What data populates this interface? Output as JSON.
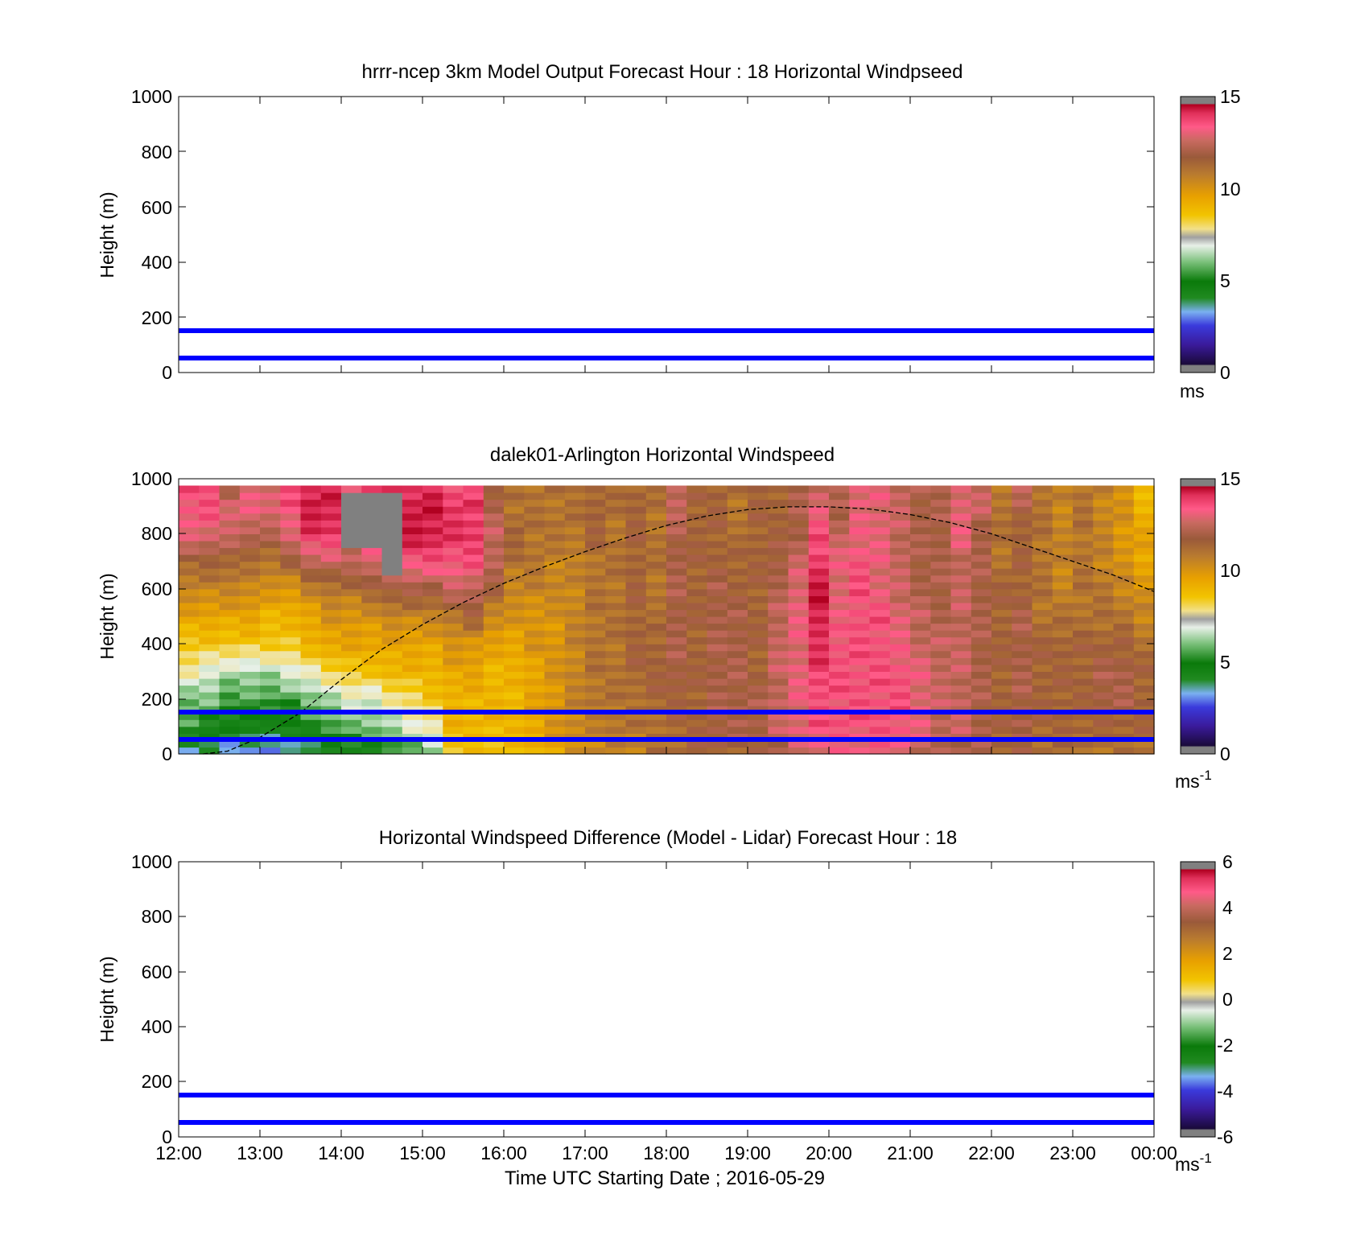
{
  "chart_data": [
    {
      "type": "heatmap",
      "title": "hrrr-ncep 3km Model Output   Forecast Hour : 18 Horizontal Windpseed",
      "ylabel": "Height (m)",
      "ylim": [
        0,
        1000
      ],
      "yticks": [
        "0",
        "200",
        "400",
        "600",
        "800",
        "1000"
      ],
      "xlim_hours": [
        12,
        24
      ],
      "colorbar": {
        "ticks": [
          "0",
          "5",
          "10",
          "15"
        ],
        "range": [
          0,
          15
        ],
        "unit": "ms",
        "unit_sup": ""
      },
      "reference_lines": [
        50,
        150
      ],
      "reference_line_color": "#0000ff",
      "values": []
    },
    {
      "type": "heatmap",
      "title": "dalek01-Arlington  Horizontal Windspeed",
      "ylabel": "Height (m)",
      "ylim": [
        0,
        1000
      ],
      "yticks": [
        "0",
        "200",
        "400",
        "600",
        "800",
        "1000"
      ],
      "xlim_hours": [
        12,
        24
      ],
      "colorbar": {
        "ticks": [
          "0",
          "5",
          "10",
          "15"
        ],
        "range": [
          0,
          15
        ],
        "unit": "ms",
        "unit_sup": "-1"
      },
      "reference_lines": [
        50,
        150
      ],
      "reference_line_color": "#0000ff",
      "bl_curve": {
        "x_hours": [
          12.3,
          12.6,
          13.0,
          13.5,
          14.0,
          14.5,
          15.0,
          15.5,
          16.0,
          16.5,
          17.0,
          17.5,
          18.0,
          18.5,
          19.0,
          19.5,
          20.0,
          20.5,
          21.0,
          21.5,
          22.0,
          22.5,
          23.0,
          23.5,
          24.0
        ],
        "y_m": [
          0,
          10,
          60,
          150,
          270,
          380,
          470,
          550,
          620,
          680,
          735,
          785,
          830,
          865,
          888,
          898,
          898,
          890,
          870,
          840,
          800,
          750,
          700,
          650,
          590
        ]
      },
      "columns": [
        {
          "hour": 12.125,
          "profile": [
            3.5,
            5.5,
            6.0,
            7.5,
            8.5,
            9.5,
            10.5,
            11.5,
            13.0,
            13.5,
            13.5
          ]
        },
        {
          "hour": 12.375,
          "profile": [
            3.5,
            5.0,
            6.0,
            7.0,
            8.5,
            9.5,
            10.5,
            11.5,
            13.0,
            13.5,
            13.5
          ]
        },
        {
          "hour": 12.625,
          "profile": [
            3.0,
            4.5,
            5.5,
            6.5,
            8.5,
            9.5,
            10.5,
            11.5,
            12.5,
            13.0,
            11.5
          ]
        },
        {
          "hour": 12.875,
          "profile": [
            3.0,
            4.5,
            5.5,
            6.5,
            8.5,
            9.5,
            10.5,
            11.0,
            12.5,
            13.0,
            13.0
          ]
        },
        {
          "hour": 13.125,
          "profile": [
            3.0,
            4.5,
            5.5,
            6.5,
            8.5,
            9.0,
            10.0,
            11.0,
            12.0,
            13.0,
            13.0
          ]
        },
        {
          "hour": 13.375,
          "profile": [
            3.0,
            4.5,
            5.5,
            7.0,
            8.5,
            9.0,
            10.0,
            11.5,
            13.0,
            13.5,
            13.5
          ]
        },
        {
          "hour": 13.625,
          "profile": [
            3.5,
            5.0,
            6.0,
            7.5,
            9.0,
            9.5,
            10.5,
            12.5,
            14.0,
            14.5,
            14.0
          ]
        },
        {
          "hour": 13.875,
          "profile": [
            4.0,
            5.5,
            6.5,
            8.0,
            9.5,
            10.0,
            11.0,
            12.5,
            14.0,
            14.5,
            14.0
          ]
        },
        {
          "hour": 14.125,
          "profile": [
            4.5,
            6.0,
            7.0,
            8.5,
            9.5,
            10.0,
            11.0,
            12.5,
            -1,
            -1,
            13.5
          ]
        },
        {
          "hour": 14.375,
          "profile": [
            4.5,
            6.0,
            7.0,
            8.5,
            9.5,
            10.0,
            11.5,
            13.0,
            -1,
            -1,
            13.5
          ]
        },
        {
          "hour": 14.625,
          "profile": [
            5.0,
            6.5,
            7.5,
            9.0,
            9.5,
            10.5,
            12.0,
            -1,
            -1,
            -1,
            14.0
          ]
        },
        {
          "hour": 14.875,
          "profile": [
            5.5,
            7.0,
            8.0,
            9.0,
            9.5,
            10.5,
            12.0,
            13.5,
            14.5,
            14.5,
            14.0
          ]
        },
        {
          "hour": 15.125,
          "profile": [
            6.0,
            7.5,
            8.5,
            9.0,
            9.5,
            10.5,
            12.0,
            13.5,
            14.5,
            14.5,
            14.0
          ]
        },
        {
          "hour": 15.375,
          "profile": [
            8.5,
            9.0,
            9.0,
            9.5,
            10.0,
            11.0,
            12.5,
            13.5,
            14.0,
            14.0,
            13.5
          ]
        },
        {
          "hour": 15.625,
          "profile": [
            8.5,
            9.0,
            9.0,
            9.5,
            10.0,
            11.5,
            12.5,
            13.5,
            14.0,
            14.0,
            13.0
          ]
        },
        {
          "hour": 15.875,
          "profile": [
            8.5,
            9.0,
            9.0,
            9.0,
            9.5,
            10.5,
            11.5,
            12.5,
            12.5,
            12.0,
            11.5
          ]
        },
        {
          "hour": 16.125,
          "profile": [
            8.5,
            9.0,
            9.0,
            9.0,
            9.5,
            10.0,
            10.5,
            11.0,
            11.5,
            11.0,
            11.0
          ]
        },
        {
          "hour": 16.375,
          "profile": [
            9.0,
            9.5,
            9.5,
            9.5,
            10.0,
            10.0,
            10.5,
            11.0,
            11.0,
            11.0,
            11.0
          ]
        },
        {
          "hour": 16.625,
          "profile": [
            9.5,
            10.0,
            10.0,
            10.0,
            10.0,
            10.0,
            10.5,
            10.5,
            11.0,
            11.0,
            11.0
          ]
        },
        {
          "hour": 16.875,
          "profile": [
            10.0,
            10.5,
            10.5,
            10.5,
            10.5,
            10.5,
            10.5,
            10.5,
            11.0,
            11.0,
            11.0
          ]
        },
        {
          "hour": 17.125,
          "profile": [
            10.5,
            10.5,
            11.0,
            11.0,
            11.0,
            11.0,
            11.0,
            11.0,
            11.5,
            11.5,
            11.5
          ]
        },
        {
          "hour": 17.375,
          "profile": [
            10.5,
            11.0,
            11.0,
            11.0,
            11.0,
            11.0,
            11.0,
            11.0,
            11.0,
            11.0,
            11.5
          ]
        },
        {
          "hour": 17.625,
          "profile": [
            10.5,
            11.0,
            11.0,
            11.5,
            11.5,
            11.5,
            11.5,
            11.5,
            11.5,
            11.5,
            11.5
          ]
        },
        {
          "hour": 17.875,
          "profile": [
            11.0,
            11.0,
            11.5,
            11.5,
            11.5,
            11.0,
            11.0,
            11.0,
            11.0,
            11.0,
            11.0
          ]
        },
        {
          "hour": 18.125,
          "profile": [
            11.0,
            11.5,
            11.5,
            12.0,
            12.0,
            12.0,
            12.0,
            12.0,
            12.0,
            12.5,
            12.5
          ]
        },
        {
          "hour": 18.375,
          "profile": [
            11.5,
            11.5,
            11.5,
            11.5,
            11.5,
            11.5,
            11.5,
            11.5,
            11.5,
            11.5,
            11.5
          ]
        },
        {
          "hour": 18.625,
          "profile": [
            11.5,
            12.0,
            12.0,
            12.0,
            12.0,
            12.0,
            12.0,
            11.5,
            11.5,
            11.5,
            11.5
          ]
        },
        {
          "hour": 18.875,
          "profile": [
            11.5,
            12.0,
            12.0,
            12.0,
            12.0,
            12.0,
            11.5,
            11.5,
            11.0,
            11.0,
            11.0
          ]
        },
        {
          "hour": 19.125,
          "profile": [
            11.5,
            12.0,
            12.0,
            11.5,
            11.5,
            11.5,
            11.5,
            11.5,
            11.5,
            11.5,
            11.5
          ]
        },
        {
          "hour": 19.375,
          "profile": [
            12.0,
            12.5,
            12.5,
            12.5,
            12.5,
            12.5,
            12.0,
            12.0,
            11.5,
            11.5,
            11.5
          ]
        },
        {
          "hour": 19.625,
          "profile": [
            12.5,
            13.0,
            13.0,
            13.0,
            13.0,
            13.0,
            13.0,
            12.5,
            12.0,
            12.0,
            12.0
          ]
        },
        {
          "hour": 19.875,
          "profile": [
            13.0,
            13.5,
            13.5,
            14.0,
            14.0,
            14.5,
            14.5,
            14.0,
            13.5,
            13.0,
            12.5
          ]
        },
        {
          "hour": 20.125,
          "profile": [
            13.0,
            13.5,
            13.5,
            13.5,
            13.5,
            13.0,
            13.0,
            13.0,
            12.5,
            12.0,
            12.0
          ]
        },
        {
          "hour": 20.375,
          "profile": [
            13.0,
            13.5,
            13.5,
            13.5,
            13.5,
            13.5,
            13.5,
            13.5,
            13.0,
            13.0,
            13.0
          ]
        },
        {
          "hour": 20.625,
          "profile": [
            13.0,
            13.5,
            13.5,
            13.5,
            13.5,
            13.5,
            13.0,
            13.0,
            13.0,
            13.0,
            13.0
          ]
        },
        {
          "hour": 20.875,
          "profile": [
            13.0,
            13.5,
            13.5,
            13.5,
            13.0,
            13.0,
            12.5,
            12.5,
            12.5,
            12.5,
            12.5
          ]
        },
        {
          "hour": 21.125,
          "profile": [
            12.5,
            13.0,
            13.0,
            13.0,
            12.5,
            12.5,
            12.0,
            12.0,
            12.0,
            12.0,
            12.0
          ]
        },
        {
          "hour": 21.375,
          "profile": [
            12.0,
            12.5,
            12.5,
            12.5,
            12.5,
            12.0,
            12.0,
            12.0,
            12.0,
            12.0,
            12.0
          ]
        },
        {
          "hour": 21.625,
          "profile": [
            12.0,
            12.5,
            12.5,
            12.5,
            12.5,
            12.5,
            12.5,
            12.5,
            13.0,
            13.0,
            13.0
          ]
        },
        {
          "hour": 21.875,
          "profile": [
            12.0,
            12.0,
            12.0,
            12.0,
            12.0,
            12.0,
            12.0,
            12.0,
            12.0,
            12.5,
            12.5
          ]
        },
        {
          "hour": 22.125,
          "profile": [
            11.5,
            11.5,
            11.5,
            11.5,
            11.5,
            11.5,
            11.5,
            11.0,
            11.0,
            11.0,
            11.0
          ]
        },
        {
          "hour": 22.375,
          "profile": [
            11.5,
            12.0,
            12.0,
            12.0,
            12.0,
            12.0,
            11.5,
            11.5,
            11.5,
            12.0,
            12.5
          ]
        },
        {
          "hour": 22.625,
          "profile": [
            11.0,
            11.5,
            11.5,
            11.5,
            11.5,
            11.0,
            11.0,
            11.0,
            11.0,
            11.0,
            11.0
          ]
        },
        {
          "hour": 22.875,
          "profile": [
            11.0,
            11.5,
            11.5,
            11.5,
            11.5,
            11.0,
            10.5,
            10.5,
            10.5,
            10.5,
            10.5
          ]
        },
        {
          "hour": 23.125,
          "profile": [
            11.0,
            11.5,
            11.5,
            11.5,
            11.5,
            11.0,
            11.0,
            11.0,
            11.0,
            11.0,
            11.0
          ]
        },
        {
          "hour": 23.375,
          "profile": [
            11.0,
            11.5,
            12.0,
            12.0,
            11.5,
            11.0,
            11.0,
            10.5,
            10.5,
            10.5,
            10.5
          ]
        },
        {
          "hour": 23.625,
          "profile": [
            11.0,
            11.5,
            12.0,
            12.0,
            11.5,
            11.0,
            10.5,
            10.0,
            10.0,
            10.0,
            10.0
          ]
        },
        {
          "hour": 23.875,
          "profile": [
            11.0,
            11.5,
            11.5,
            11.5,
            11.0,
            10.5,
            10.0,
            9.5,
            9.5,
            9.0,
            9.0
          ]
        }
      ]
    },
    {
      "type": "heatmap",
      "title": "Horizontal Windspeed Difference (Model - Lidar) Forecast Hour : 18",
      "xlabel": "Time UTC  Starting Date ; 2016-05-29",
      "ylabel": "Height (m)",
      "ylim": [
        0,
        1000
      ],
      "yticks": [
        "0",
        "200",
        "400",
        "600",
        "800",
        "1000"
      ],
      "xlim_hours": [
        12,
        24
      ],
      "xticks": [
        "12:00",
        "13:00",
        "14:00",
        "15:00",
        "16:00",
        "17:00",
        "18:00",
        "19:00",
        "20:00",
        "21:00",
        "22:00",
        "23:00",
        "00:00"
      ],
      "colorbar": {
        "ticks": [
          "-6",
          "-4",
          "-2",
          "0",
          "2",
          "4",
          "6"
        ],
        "range": [
          -6,
          6
        ],
        "unit": "ms",
        "unit_sup": "-1"
      },
      "reference_lines": [
        50,
        150
      ],
      "reference_line_color": "#0000ff",
      "values": []
    }
  ]
}
